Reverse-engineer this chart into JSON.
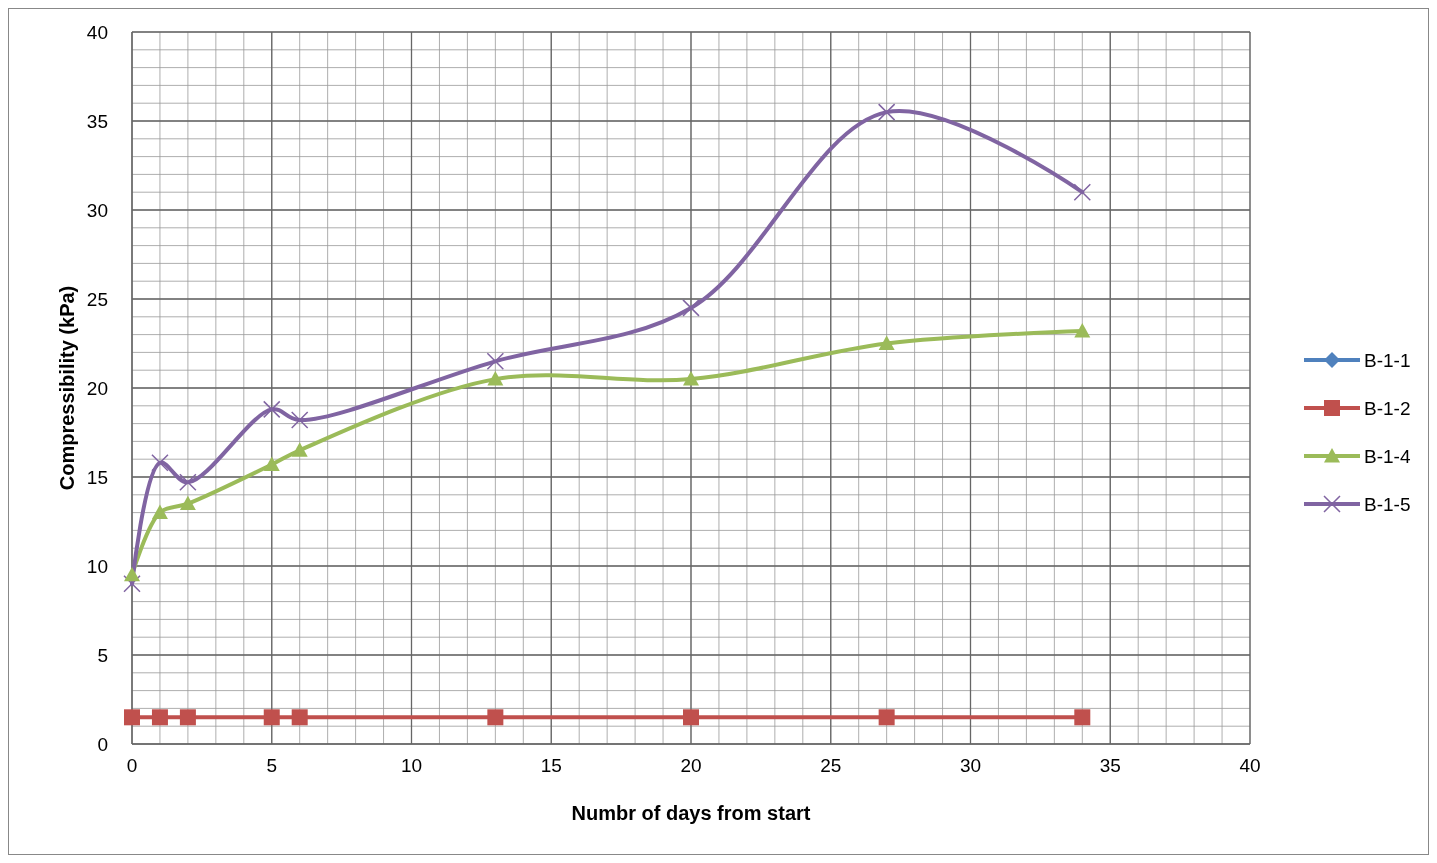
{
  "chart_data": {
    "type": "line",
    "xlabel": "Numbr of days from start",
    "ylabel": "Compressibility (kPa)",
    "x": [
      0,
      1,
      2,
      5,
      6,
      13,
      20,
      27,
      34
    ],
    "xlim": [
      0,
      40
    ],
    "xticks": [
      0,
      5,
      10,
      15,
      20,
      25,
      30,
      35,
      40
    ],
    "ylim": [
      0,
      40
    ],
    "yticks": [
      0,
      5,
      10,
      15,
      20,
      25,
      30,
      35,
      40
    ],
    "grid": true,
    "legend": "right",
    "line_style": "solid",
    "series": [
      {
        "name": "B-1-1",
        "color": "#4f81bd",
        "marker": "diamond",
        "values": [
          null,
          null,
          null,
          null,
          null,
          null,
          null,
          null,
          null
        ]
      },
      {
        "name": "B-1-2",
        "color": "#c0504d",
        "marker": "square",
        "values": [
          1.5,
          1.5,
          1.5,
          1.5,
          1.5,
          1.5,
          1.5,
          1.5,
          1.5
        ]
      },
      {
        "name": "B-1-4",
        "color": "#9bbb59",
        "marker": "triangle",
        "values": [
          9.5,
          13,
          13.5,
          15.7,
          16.5,
          20.5,
          20.5,
          22.5,
          23.2
        ]
      },
      {
        "name": "B-1-5",
        "color": "#8064a2",
        "marker": "cross",
        "values": [
          9,
          15.8,
          14.7,
          18.8,
          18.2,
          21.5,
          24.5,
          35.5,
          31
        ]
      }
    ]
  }
}
